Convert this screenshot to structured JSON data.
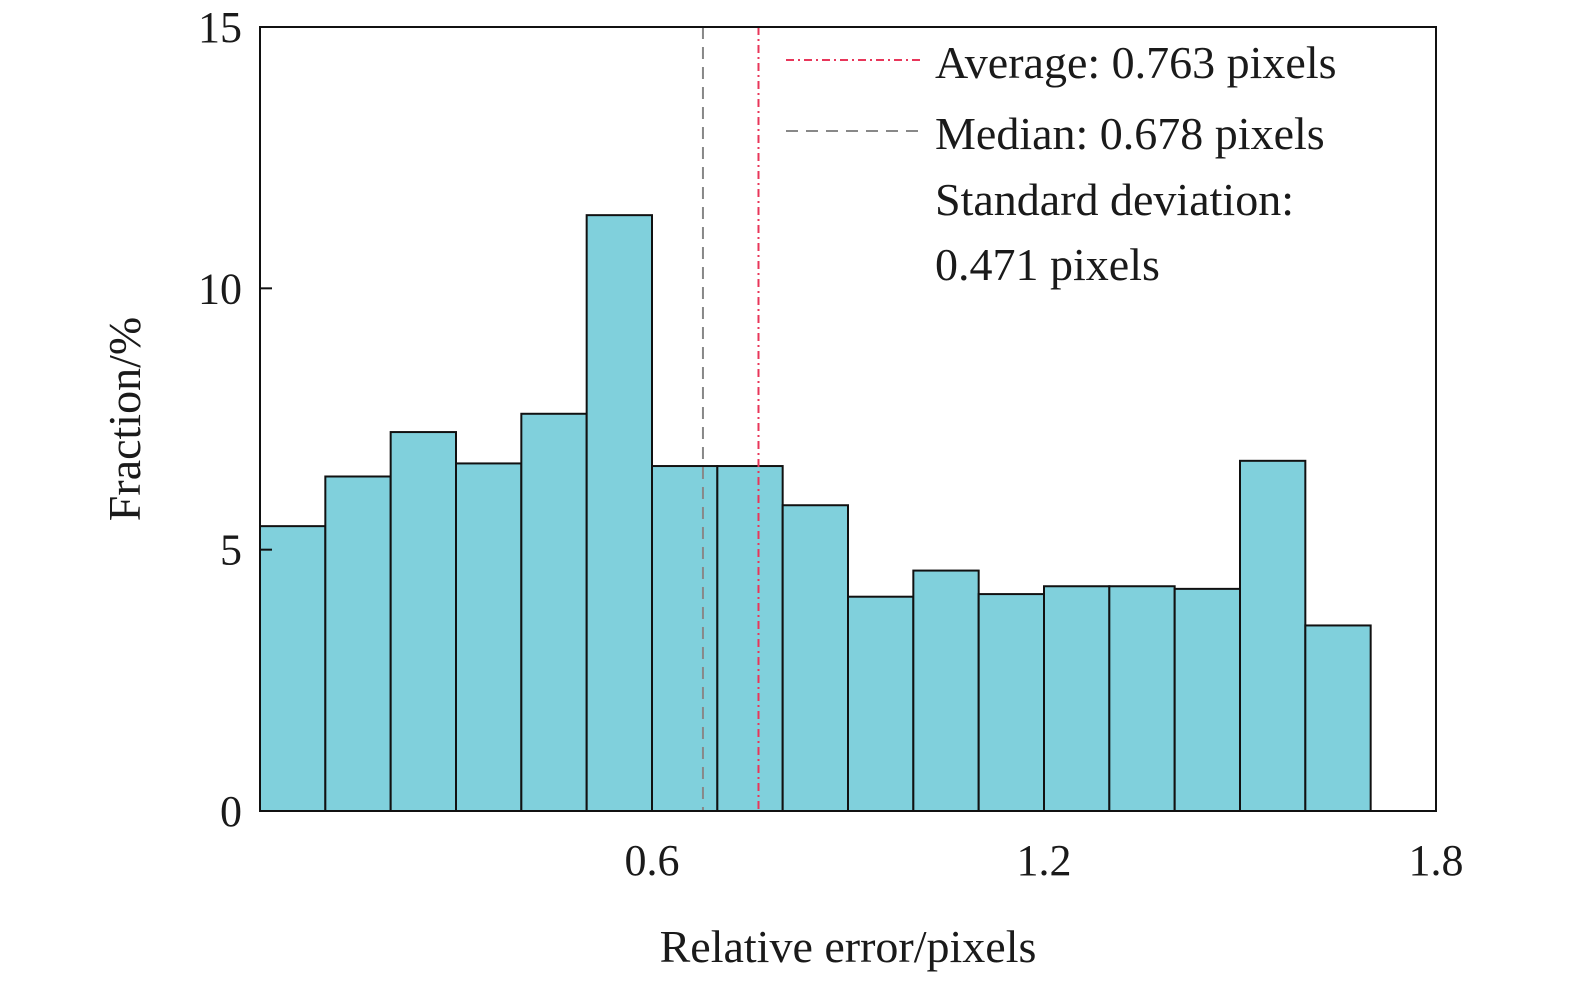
{
  "chart_data": {
    "type": "bar",
    "title": "",
    "xlabel": "Relative error/pixels",
    "ylabel": "Fraction/%",
    "xlim": [
      0,
      1.8
    ],
    "ylim": [
      0,
      15
    ],
    "xticks": [
      0.6,
      1.2,
      1.8
    ],
    "xtick_labels": [
      "0.6",
      "1.2",
      "1.8"
    ],
    "yticks": [
      0,
      5,
      10,
      15
    ],
    "ytick_labels": [
      "0",
      "5",
      "10",
      "15"
    ],
    "bin_width": 0.1,
    "bin_starts": [
      0.0,
      0.1,
      0.2,
      0.3,
      0.4,
      0.5,
      0.6,
      0.7,
      0.8,
      0.9,
      1.0,
      1.1,
      1.2,
      1.3,
      1.4,
      1.5,
      1.6
    ],
    "values": [
      5.45,
      6.4,
      7.25,
      6.65,
      7.6,
      11.4,
      6.6,
      6.6,
      5.85,
      4.1,
      4.6,
      4.15,
      4.3,
      4.3,
      4.25,
      6.7,
      3.55
    ],
    "bar_color": "#80d0dc",
    "bar_edge_color": "#111111",
    "grid": false,
    "legend_position": "top-right",
    "reference_lines": [
      {
        "x": 0.763,
        "label": "Average: 0.763 pixels",
        "style": "dash-dot",
        "color": "#e8365a"
      },
      {
        "x": 0.678,
        "label": "Median: 0.678 pixels",
        "style": "dashed",
        "color": "#888888"
      }
    ],
    "annotation_lines": [
      "Standard deviation:",
      "0.471 pixels"
    ]
  }
}
